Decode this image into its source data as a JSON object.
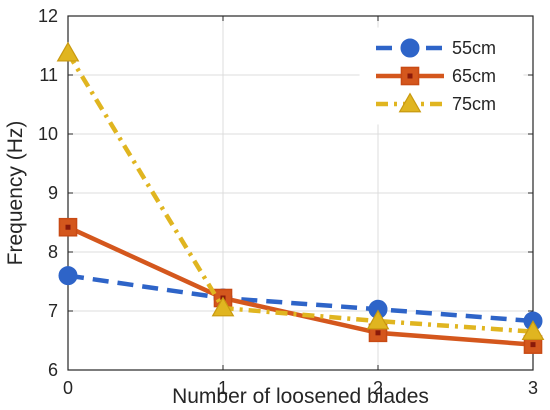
{
  "chart_data": {
    "type": "line",
    "xlabel": "Number of loosened blades",
    "ylabel": "Frequency (Hz)",
    "xlim": [
      0,
      3
    ],
    "ylim": [
      6,
      12
    ],
    "x_ticks": [
      "0",
      "1",
      "2",
      "3"
    ],
    "y_ticks": [
      "6",
      "7",
      "8",
      "9",
      "10",
      "11",
      "12"
    ],
    "grid": true,
    "legend_position": "top-right",
    "x": [
      0,
      1,
      2,
      3
    ],
    "series": [
      {
        "name": "55cm",
        "values": [
          7.6,
          7.22,
          7.03,
          6.83
        ],
        "color": "#2e64c8",
        "marker": "circle",
        "linestyle": "dashed"
      },
      {
        "name": "65cm",
        "values": [
          8.42,
          7.22,
          6.63,
          6.43
        ],
        "color": "#d4571d",
        "marker": "square",
        "linestyle": "solid"
      },
      {
        "name": "75cm",
        "values": [
          11.37,
          7.05,
          6.83,
          6.65
        ],
        "color": "#e0b520",
        "marker": "triangle",
        "linestyle": "dashdot"
      }
    ]
  }
}
